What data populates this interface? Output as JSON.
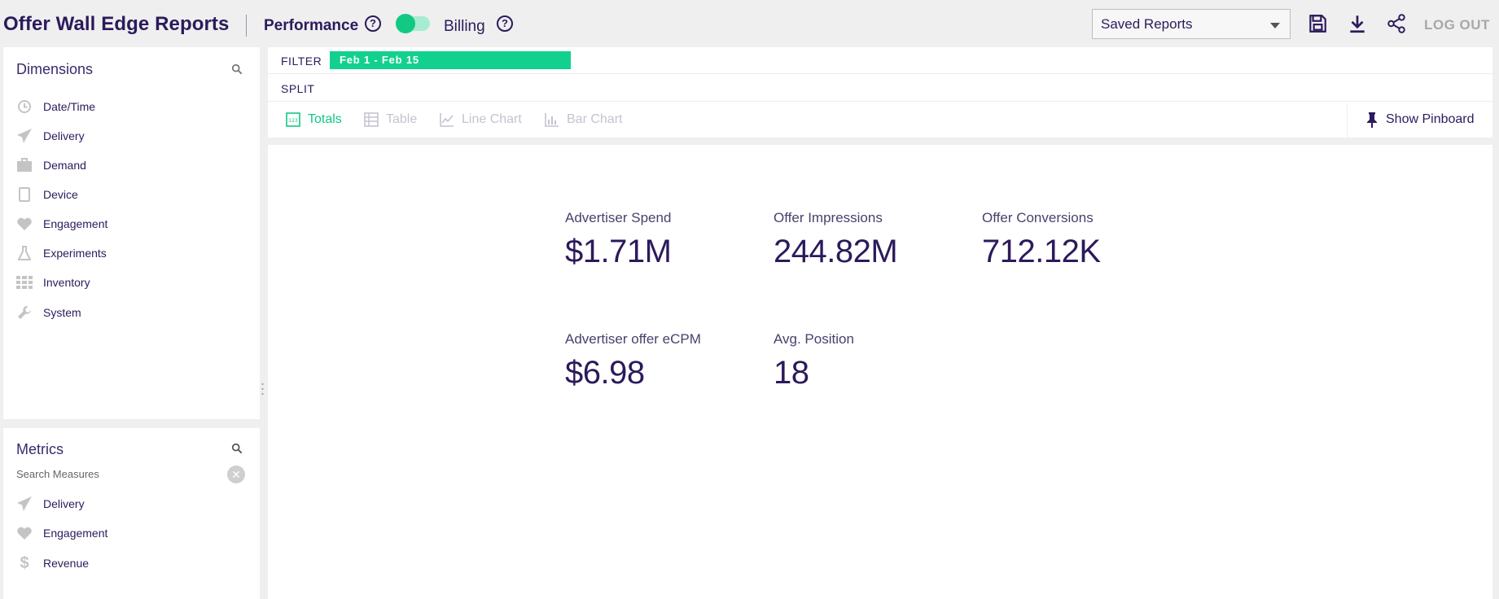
{
  "header": {
    "title": "Offer Wall Edge Reports",
    "mode_performance": "Performance",
    "mode_billing": "Billing",
    "help_glyph": "?",
    "saved_reports": "Saved Reports",
    "logout": "LOG OUT",
    "icons": [
      "save-icon",
      "download-icon",
      "share-icon"
    ]
  },
  "dimensions": {
    "title": "Dimensions",
    "items": [
      {
        "label": "Date/Time",
        "icon": "clock-icon"
      },
      {
        "label": "Delivery",
        "icon": "paper-plane-icon"
      },
      {
        "label": "Demand",
        "icon": "briefcase-icon"
      },
      {
        "label": "Device",
        "icon": "tablet-icon"
      },
      {
        "label": "Engagement",
        "icon": "heart-icon"
      },
      {
        "label": "Experiments",
        "icon": "flask-icon"
      },
      {
        "label": "Inventory",
        "icon": "grid-icon"
      },
      {
        "label": "System",
        "icon": "wrench-icon"
      }
    ]
  },
  "metrics_panel": {
    "title": "Metrics",
    "search_placeholder": "Search Measures",
    "clear_glyph": "✕",
    "items": [
      {
        "label": "Delivery",
        "icon": "paper-plane-icon"
      },
      {
        "label": "Engagement",
        "icon": "heart-icon"
      },
      {
        "label": "Revenue",
        "icon": "dollar-icon"
      }
    ]
  },
  "filter": {
    "label": "FILTER",
    "chip": "Feb 1 - Feb 15",
    "split_label": "SPLIT"
  },
  "viz_tabs": [
    {
      "label": "Totals",
      "active": true,
      "icon": "totals-icon"
    },
    {
      "label": "Table",
      "active": false,
      "icon": "table-icon"
    },
    {
      "label": "Line Chart",
      "active": false,
      "icon": "line-chart-icon"
    },
    {
      "label": "Bar Chart",
      "active": false,
      "icon": "bar-chart-icon"
    }
  ],
  "pinboard": {
    "label": "Show Pinboard"
  },
  "totals": [
    {
      "label": "Advertiser Spend",
      "value": "$1.71M"
    },
    {
      "label": "Offer Impressions",
      "value": "244.82M"
    },
    {
      "label": "Offer Conversions",
      "value": "712.12K"
    },
    {
      "label": "Advertiser offer eCPM",
      "value": "$6.98"
    },
    {
      "label": "Avg. Position",
      "value": "18"
    }
  ],
  "colors": {
    "primary": "#2c1a5c",
    "accent": "#12c984",
    "chip": "#12d18e",
    "muted": "#c6c2d0"
  }
}
